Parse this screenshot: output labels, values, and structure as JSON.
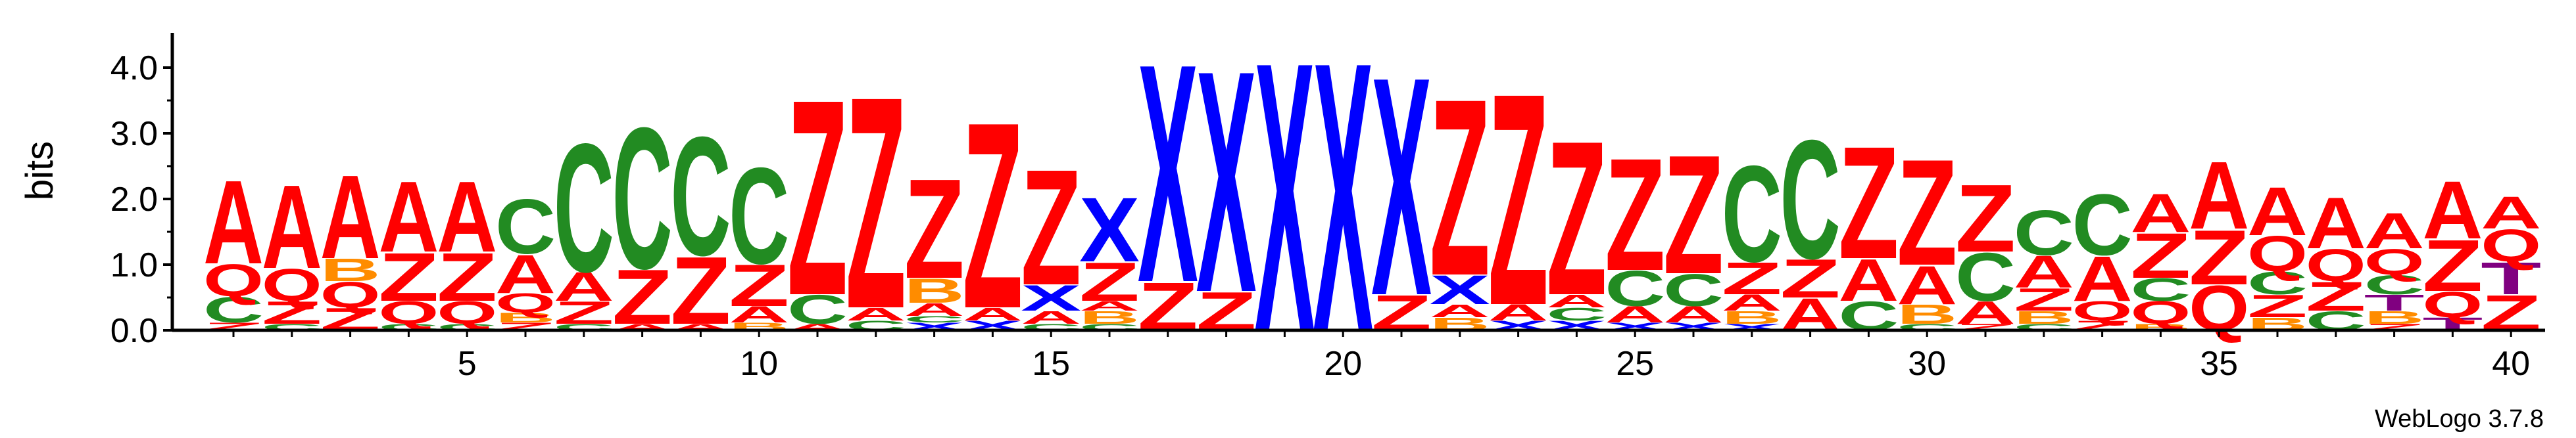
{
  "chart_data": {
    "type": "sequence-logo",
    "ylabel": "bits",
    "ylim": [
      0,
      4.2
    ],
    "y_ticks": [
      {
        "value": 0.0,
        "label": "0.0"
      },
      {
        "value": 1.0,
        "label": "1.0"
      },
      {
        "value": 2.0,
        "label": "2.0"
      },
      {
        "value": 3.0,
        "label": "3.0"
      },
      {
        "value": 4.0,
        "label": "4.0"
      }
    ],
    "x_ticks": [
      {
        "value": 5,
        "label": "5"
      },
      {
        "value": 10,
        "label": "10"
      },
      {
        "value": 15,
        "label": "15"
      },
      {
        "value": 20,
        "label": "20"
      },
      {
        "value": 25,
        "label": "25"
      },
      {
        "value": 30,
        "label": "30"
      },
      {
        "value": 35,
        "label": "35"
      },
      {
        "value": 40,
        "label": "40"
      }
    ],
    "credit": "WebLogo 3.7.8",
    "colors": {
      "A": "#ff0000",
      "Z": "#ff0000",
      "C": "#228b22",
      "Q": "#ff0000",
      "B": "#ff8c00",
      "X": "#0000ff",
      "T": "#800080"
    },
    "positions": [
      {
        "pos": 1,
        "stack": [
          [
            "Z",
            0.12
          ],
          [
            "C",
            0.4
          ],
          [
            "Q",
            0.5
          ],
          [
            "A",
            1.3
          ]
        ]
      },
      {
        "pos": 2,
        "stack": [
          [
            "C",
            0.1
          ],
          [
            "Z",
            0.35
          ],
          [
            "Q",
            0.5
          ],
          [
            "A",
            1.3
          ]
        ]
      },
      {
        "pos": 3,
        "stack": [
          [
            "Z",
            0.35
          ],
          [
            "Q",
            0.4
          ],
          [
            "B",
            0.35
          ],
          [
            "A",
            1.3
          ]
        ]
      },
      {
        "pos": 4,
        "stack": [
          [
            "C",
            0.1
          ],
          [
            "Q",
            0.35
          ],
          [
            "Z",
            0.75
          ],
          [
            "A",
            1.1
          ]
        ]
      },
      {
        "pos": 5,
        "stack": [
          [
            "C",
            0.1
          ],
          [
            "Q",
            0.35
          ],
          [
            "Z",
            0.75
          ],
          [
            "A",
            1.1
          ]
        ]
      },
      {
        "pos": 6,
        "stack": [
          [
            "Z",
            0.12
          ],
          [
            "B",
            0.15
          ],
          [
            "Q",
            0.3
          ],
          [
            "A",
            0.6
          ],
          [
            "C",
            0.85
          ]
        ]
      },
      {
        "pos": 7,
        "stack": [
          [
            "C",
            0.1
          ],
          [
            "Z",
            0.35
          ],
          [
            "A",
            0.45
          ],
          [
            "C",
            2.0
          ]
        ]
      },
      {
        "pos": 8,
        "stack": [
          [
            "A",
            0.1
          ],
          [
            "Z",
            0.85
          ],
          [
            "C",
            2.2
          ]
        ]
      },
      {
        "pos": 9,
        "stack": [
          [
            "A",
            0.1
          ],
          [
            "Z",
            1.05
          ],
          [
            "C",
            1.85
          ]
        ]
      },
      {
        "pos": 10,
        "stack": [
          [
            "B",
            0.12
          ],
          [
            "A",
            0.25
          ],
          [
            "Z",
            0.65
          ],
          [
            "C",
            1.5
          ]
        ]
      },
      {
        "pos": 11,
        "stack": [
          [
            "A",
            0.1
          ],
          [
            "C",
            0.45
          ],
          [
            "Z",
            3.05
          ]
        ]
      },
      {
        "pos": 12,
        "stack": [
          [
            "C",
            0.15
          ],
          [
            "A",
            0.2
          ],
          [
            "Z",
            3.3
          ]
        ]
      },
      {
        "pos": 13,
        "stack": [
          [
            "X",
            0.12
          ],
          [
            "C",
            0.1
          ],
          [
            "A",
            0.2
          ],
          [
            "B",
            0.38
          ],
          [
            "Z",
            1.55
          ]
        ]
      },
      {
        "pos": 14,
        "stack": [
          [
            "X",
            0.15
          ],
          [
            "A",
            0.2
          ],
          [
            "Z",
            2.9
          ]
        ]
      },
      {
        "pos": 15,
        "stack": [
          [
            "C",
            0.1
          ],
          [
            "A",
            0.2
          ],
          [
            "X",
            0.4
          ],
          [
            "Z",
            1.8
          ]
        ]
      },
      {
        "pos": 16,
        "stack": [
          [
            "C",
            0.1
          ],
          [
            "B",
            0.2
          ],
          [
            "A",
            0.15
          ],
          [
            "Z",
            0.6
          ],
          [
            "X",
            1.0
          ]
        ]
      },
      {
        "pos": 17,
        "stack": [
          [
            "Z",
            0.75
          ],
          [
            "X",
            3.4
          ]
        ]
      },
      {
        "pos": 18,
        "stack": [
          [
            "Z",
            0.6
          ],
          [
            "X",
            3.45
          ]
        ]
      },
      {
        "pos": 19,
        "stack": [
          [
            "X",
            4.2
          ]
        ]
      },
      {
        "pos": 20,
        "stack": [
          [
            "X",
            4.2
          ]
        ]
      },
      {
        "pos": 21,
        "stack": [
          [
            "Z",
            0.55
          ],
          [
            "X",
            3.4
          ]
        ]
      },
      {
        "pos": 22,
        "stack": [
          [
            "B",
            0.2
          ],
          [
            "A",
            0.2
          ],
          [
            "X",
            0.45
          ],
          [
            "Z",
            2.75
          ]
        ]
      },
      {
        "pos": 23,
        "stack": [
          [
            "X",
            0.15
          ],
          [
            "A",
            0.25
          ],
          [
            "Z",
            3.3
          ]
        ]
      },
      {
        "pos": 24,
        "stack": [
          [
            "X",
            0.15
          ],
          [
            "C",
            0.2
          ],
          [
            "A",
            0.2
          ],
          [
            "Z",
            2.4
          ]
        ]
      },
      {
        "pos": 25,
        "stack": [
          [
            "X",
            0.12
          ],
          [
            "A",
            0.25
          ],
          [
            "C",
            0.55
          ],
          [
            "Z",
            1.75
          ]
        ]
      },
      {
        "pos": 26,
        "stack": [
          [
            "X",
            0.12
          ],
          [
            "A",
            0.25
          ],
          [
            "C",
            0.5
          ],
          [
            "Z",
            1.85
          ]
        ]
      },
      {
        "pos": 27,
        "stack": [
          [
            "X",
            0.1
          ],
          [
            "B",
            0.2
          ],
          [
            "A",
            0.25
          ],
          [
            "Z",
            0.5
          ],
          [
            "C",
            1.5
          ]
        ]
      },
      {
        "pos": 28,
        "stack": [
          [
            "A",
            0.5
          ],
          [
            "Z",
            0.6
          ],
          [
            "C",
            1.85
          ]
        ]
      },
      {
        "pos": 29,
        "stack": [
          [
            "C",
            0.45
          ],
          [
            "A",
            0.65
          ],
          [
            "Z",
            1.75
          ]
        ]
      },
      {
        "pos": 30,
        "stack": [
          [
            "C",
            0.1
          ],
          [
            "B",
            0.3
          ],
          [
            "A",
            0.6
          ],
          [
            "Z",
            1.65
          ]
        ]
      },
      {
        "pos": 31,
        "stack": [
          [
            "Z",
            0.1
          ],
          [
            "A",
            0.35
          ],
          [
            "C",
            0.75
          ],
          [
            "Z",
            1.05
          ]
        ]
      },
      {
        "pos": 32,
        "stack": [
          [
            "C",
            0.1
          ],
          [
            "B",
            0.2
          ],
          [
            "Z",
            0.35
          ],
          [
            "A",
            0.5
          ],
          [
            "C",
            0.7
          ]
        ]
      },
      {
        "pos": 33,
        "stack": [
          [
            "Z",
            0.15
          ],
          [
            "Q",
            0.3
          ],
          [
            "A",
            0.7
          ],
          [
            "C",
            0.95
          ]
        ]
      },
      {
        "pos": 34,
        "stack": [
          [
            "B",
            0.1
          ],
          [
            "Q",
            0.35
          ],
          [
            "C",
            0.35
          ],
          [
            "Z",
            0.7
          ],
          [
            "A",
            0.6
          ]
        ]
      },
      {
        "pos": 35,
        "stack": [
          [
            "Q",
            0.7
          ],
          [
            "Z",
            0.85
          ],
          [
            "A",
            1.05
          ]
        ]
      },
      {
        "pos": 36,
        "stack": [
          [
            "B",
            0.2
          ],
          [
            "Z",
            0.35
          ],
          [
            "C",
            0.35
          ],
          [
            "Q",
            0.55
          ],
          [
            "A",
            0.75
          ]
        ]
      },
      {
        "pos": 37,
        "stack": [
          [
            "C",
            0.3
          ],
          [
            "Z",
            0.45
          ],
          [
            "Q",
            0.5
          ],
          [
            "A",
            0.8
          ]
        ]
      },
      {
        "pos": 38,
        "stack": [
          [
            "Z",
            0.1
          ],
          [
            "B",
            0.2
          ],
          [
            "T",
            0.25
          ],
          [
            "C",
            0.3
          ],
          [
            "Q",
            0.4
          ],
          [
            "A",
            0.55
          ]
        ]
      },
      {
        "pos": 39,
        "stack": [
          [
            "T",
            0.2
          ],
          [
            "Q",
            0.4
          ],
          [
            "Z",
            0.8
          ],
          [
            "A",
            0.9
          ]
        ]
      },
      {
        "pos": 40,
        "stack": [
          [
            "Z",
            0.55
          ],
          [
            "T",
            0.5
          ],
          [
            "Q",
            0.5
          ],
          [
            "A",
            0.5
          ]
        ]
      }
    ]
  }
}
